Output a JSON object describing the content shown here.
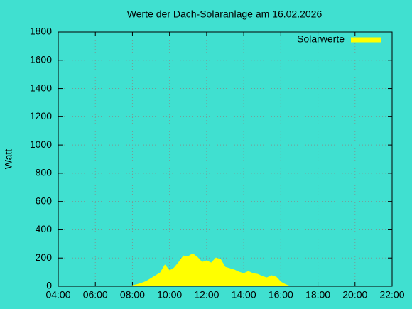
{
  "chart_data": {
    "type": "area",
    "title": "Werte der Dach-Solaranlage am 16.02.2026",
    "y_label": "Watt",
    "x": [
      8.0,
      8.25,
      8.5,
      8.75,
      9.0,
      9.25,
      9.5,
      9.75,
      10.0,
      10.25,
      10.5,
      10.75,
      11.0,
      11.25,
      11.5,
      11.75,
      12.0,
      12.25,
      12.5,
      12.75,
      13.0,
      13.25,
      13.5,
      13.75,
      14.0,
      14.25,
      14.5,
      14.75,
      15.0,
      15.25,
      15.5,
      15.75,
      16.0,
      16.25,
      16.5
    ],
    "series": [
      {
        "name": "Solarwerte",
        "color": "#ffff00",
        "values": [
          5,
          12,
          22,
          35,
          55,
          75,
          95,
          150,
          110,
          130,
          170,
          215,
          210,
          230,
          205,
          170,
          180,
          165,
          200,
          190,
          135,
          125,
          115,
          100,
          90,
          105,
          90,
          85,
          70,
          60,
          75,
          65,
          30,
          12,
          0
        ]
      }
    ],
    "xlim": [
      4,
      22
    ],
    "xticks": [
      {
        "value": 4,
        "label": "04:00"
      },
      {
        "value": 6,
        "label": "06:00"
      },
      {
        "value": 8,
        "label": "08:00"
      },
      {
        "value": 10,
        "label": "10:00"
      },
      {
        "value": 12,
        "label": "12:00"
      },
      {
        "value": 14,
        "label": "14:00"
      },
      {
        "value": 16,
        "label": "16:00"
      },
      {
        "value": 18,
        "label": "18:00"
      },
      {
        "value": 20,
        "label": "20:00"
      },
      {
        "value": 22,
        "label": "22:00"
      }
    ],
    "ylim": [
      0,
      1800
    ],
    "yticks": [
      0,
      200,
      400,
      600,
      800,
      1000,
      1200,
      1400,
      1600,
      1800
    ],
    "grid": true,
    "legend": "top-right"
  }
}
